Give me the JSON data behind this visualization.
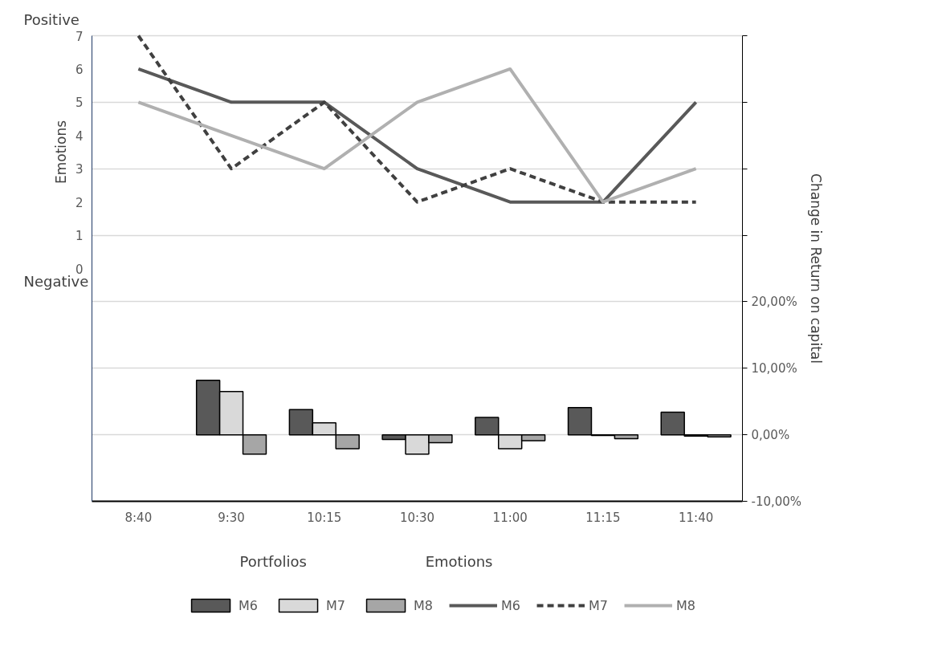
{
  "chart_data": {
    "type": "bar",
    "ylabel": "Emotions",
    "y2label": "Change in Return on capital",
    "annotations": [
      "Positive",
      "Negative",
      "Portfolios",
      "Emotions"
    ],
    "categories": [
      "8:40",
      "9:30",
      "10:15",
      "10:30",
      "11:00",
      "11:15",
      "11:40"
    ],
    "ylim": [
      -7,
      7
    ],
    "yticks": [
      0,
      1,
      2,
      3,
      4,
      5,
      6,
      7
    ],
    "y2lim": [
      -10,
      60
    ],
    "y2ticks": [
      {
        "value": -10,
        "label": "-10,00%"
      },
      {
        "value": 0,
        "label": "0,00%"
      },
      {
        "value": 10,
        "label": "10,00%"
      },
      {
        "value": 20,
        "label": "20,00%"
      },
      {
        "value": 30,
        "label": null
      },
      {
        "value": 40,
        "label": null
      },
      {
        "value": 50,
        "label": null
      },
      {
        "value": 60,
        "label": null
      }
    ],
    "grid": "y",
    "legend": "bottom",
    "marker": "none",
    "series": [
      {
        "name": "M6",
        "axis": "y2",
        "color": "#595959",
        "values": [
          null,
          8.2,
          3.8,
          -0.7,
          2.6,
          4.1,
          3.4
        ]
      },
      {
        "name": "M7",
        "axis": "y2",
        "color": "#d9d9d9",
        "values": [
          null,
          6.5,
          1.8,
          -2.9,
          -2.1,
          -0.1,
          -0.2
        ]
      },
      {
        "name": "M8",
        "axis": "y2",
        "color": "#a6a6a6",
        "values": [
          null,
          -2.9,
          -2.1,
          -1.2,
          -0.9,
          -0.6,
          -0.3
        ]
      },
      {
        "name": "M6",
        "type": "line",
        "color": "#595959",
        "line_style": "solid",
        "values": [
          6,
          5,
          5,
          3,
          2,
          2,
          5
        ]
      },
      {
        "name": "M7",
        "type": "line",
        "color": "#404040",
        "line_style": "dashed",
        "values": [
          7,
          3,
          5,
          2,
          3,
          2,
          2
        ]
      },
      {
        "name": "M8",
        "type": "line",
        "color": "#b0b0b0",
        "line_style": "solid",
        "values": [
          5,
          4,
          3,
          5,
          6,
          2,
          3
        ]
      }
    ]
  }
}
